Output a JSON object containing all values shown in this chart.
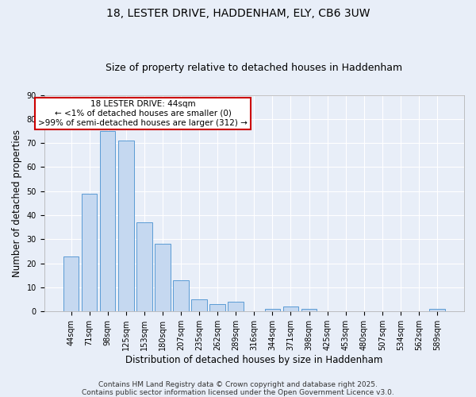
{
  "title_line1": "18, LESTER DRIVE, HADDENHAM, ELY, CB6 3UW",
  "title_line2": "Size of property relative to detached houses in Haddenham",
  "xlabel": "Distribution of detached houses by size in Haddenham",
  "ylabel": "Number of detached properties",
  "categories": [
    "44sqm",
    "71sqm",
    "98sqm",
    "125sqm",
    "153sqm",
    "180sqm",
    "207sqm",
    "235sqm",
    "262sqm",
    "289sqm",
    "316sqm",
    "344sqm",
    "371sqm",
    "398sqm",
    "425sqm",
    "453sqm",
    "480sqm",
    "507sqm",
    "534sqm",
    "562sqm",
    "589sqm"
  ],
  "values": [
    23,
    49,
    75,
    71,
    37,
    28,
    13,
    5,
    3,
    4,
    0,
    1,
    2,
    1,
    0,
    0,
    0,
    0,
    0,
    0,
    1
  ],
  "bar_color": "#c5d8f0",
  "bar_edge_color": "#5b9bd5",
  "background_color": "#e8eef8",
  "grid_color": "#ffffff",
  "annotation_box_text": "18 LESTER DRIVE: 44sqm\n← <1% of detached houses are smaller (0)\n>99% of semi-detached houses are larger (312) →",
  "annotation_box_color": "#ffffff",
  "annotation_box_edge_color": "#cc0000",
  "ylim": [
    0,
    90
  ],
  "yticks": [
    0,
    10,
    20,
    30,
    40,
    50,
    60,
    70,
    80,
    90
  ],
  "footer_line1": "Contains HM Land Registry data © Crown copyright and database right 2025.",
  "footer_line2": "Contains public sector information licensed under the Open Government Licence v3.0.",
  "title_fontsize": 10,
  "subtitle_fontsize": 9,
  "axis_label_fontsize": 8.5,
  "tick_fontsize": 7,
  "annotation_fontsize": 7.5,
  "footer_fontsize": 6.5
}
